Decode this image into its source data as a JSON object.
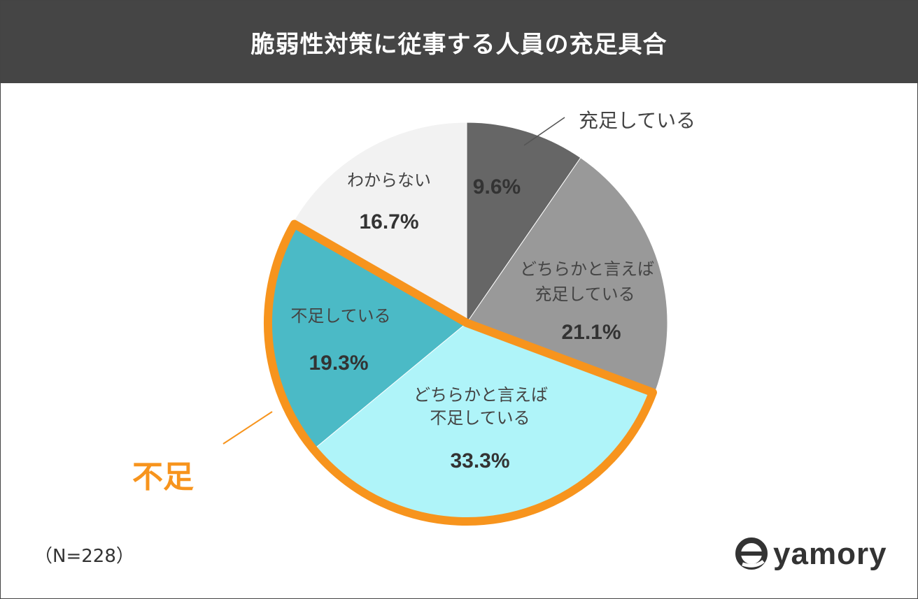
{
  "chart_data": {
    "type": "pie",
    "title": "脆弱性対策に従事する人員の充足具合",
    "start_angle_deg": 0,
    "direction": "clockwise",
    "slices": [
      {
        "label": "充足している",
        "value": 9.6,
        "display": "9.6%",
        "color": "#666666"
      },
      {
        "label": "どちらかと言えば\n充足している",
        "value": 21.1,
        "display": "21.1%",
        "color": "#999999"
      },
      {
        "label": "どちらかと言えば\n不足している",
        "value": 33.3,
        "display": "33.3%",
        "color": "#AFF4F9"
      },
      {
        "label": "不足している",
        "value": 19.3,
        "display": "19.3%",
        "color": "#4BBAC6"
      },
      {
        "label": "わからない",
        "value": 16.7,
        "display": "16.7%",
        "color": "#F2F2F2"
      }
    ],
    "highlight_group": {
      "label": "不足",
      "slice_indices": [
        2,
        3
      ],
      "color": "#F7941D"
    },
    "sample_size_text": "（N=228）"
  },
  "brand": {
    "logo_text": "yamory",
    "logo_icon": "yamory-logo-icon",
    "color": "#333333"
  }
}
